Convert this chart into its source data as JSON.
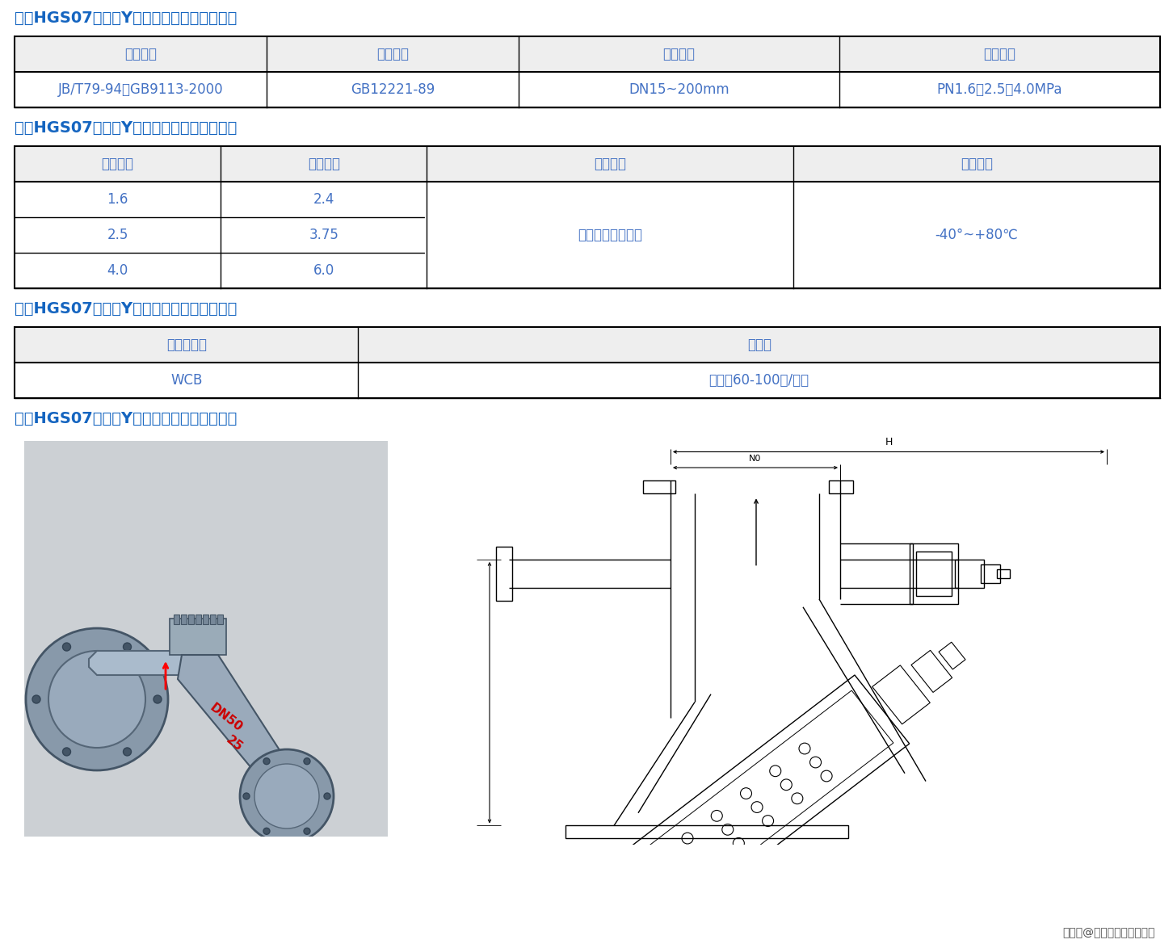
{
  "bg_color": "#ffffff",
  "title_color": "#1565C0",
  "table_text_color": "#4472C4",
  "table_border_color": "#000000",
  "section2_title": "二、HGS07液化气Y型过滤器主要设计参数：",
  "section3_title": "三、HGS07液化气Y型过滤器主要性能参数：",
  "section4_title": "四、HGS07液化气Y型过滤器主要零件材料：",
  "section5_title": "五、HGS07液化气Y型过滤器主要外形尺寸：",
  "watermark": "搜狐号@上海奇众阀门技术员",
  "table1_headers": [
    "法兰连接",
    "结构长度",
    "公称通径",
    "公称压力"
  ],
  "table1_data": [
    [
      "JB/T79-94、GB9113-2000",
      "GB12221-89",
      "DN15~200mm",
      "PN1.6、2.5、4.0MPa"
    ]
  ],
  "table2_headers": [
    "公称压力",
    "壳体试验",
    "适用介质",
    "适宜温度"
  ],
  "table2_data": [
    [
      "1.6",
      "2.4",
      "",
      ""
    ],
    [
      "2.5",
      "3.75",
      "液化气、天然气等",
      "-40°~+80℃"
    ],
    [
      "4.0",
      "6.0",
      "",
      ""
    ]
  ],
  "table3_headers": [
    "阀体、盖板",
    "过滤网"
  ],
  "table3_data": [
    [
      "WCB",
      "不锈钢60-100目/英寸"
    ]
  ]
}
